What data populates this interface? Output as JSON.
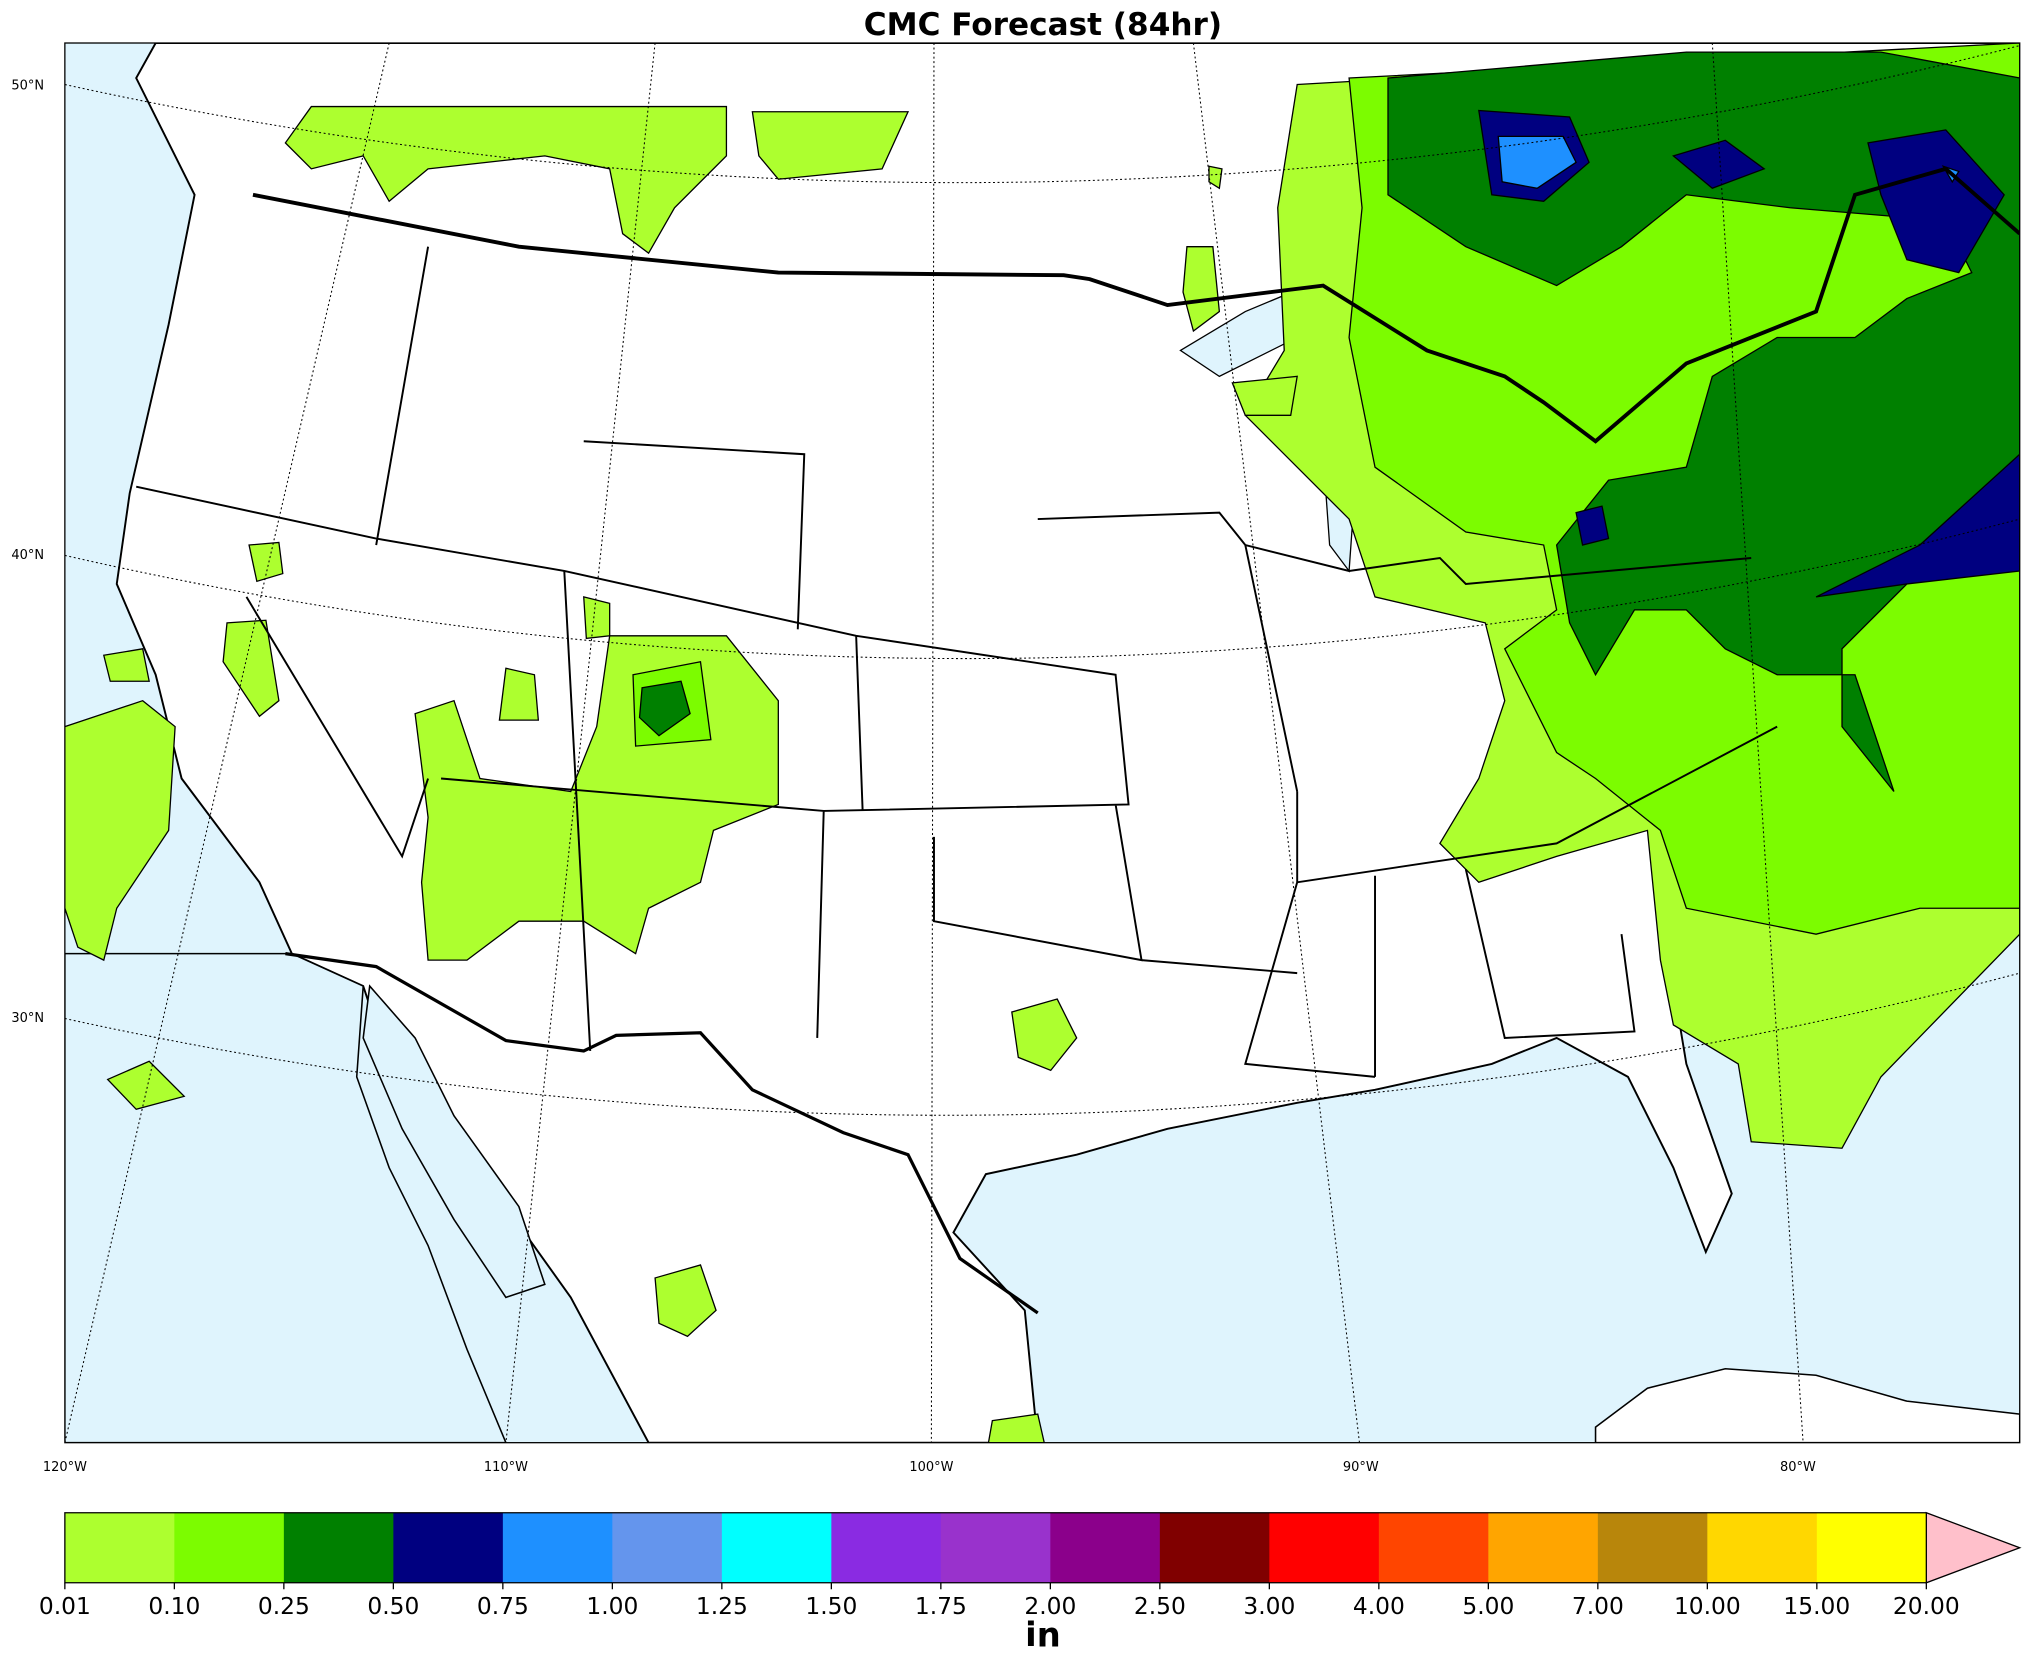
{
  "title": "CMC Forecast (84hr)",
  "graticule": {
    "latitude_labels": [
      "50°N",
      "40°N",
      "30°N"
    ],
    "longitude_labels": [
      "120°W",
      "110°W",
      "100°W",
      "90°W",
      "80°W"
    ]
  },
  "colorbar": {
    "ticks": [
      0.01,
      {
        "value": 0.1,
        "label": "0.10"
      },
      0.25,
      {
        "value": 0.5,
        "label": "0.50"
      },
      0.75,
      {
        "value": 1,
        "label": "1.00"
      },
      1.25,
      {
        "value": 1.5,
        "label": "1.50"
      },
      1.75,
      {
        "value": 2,
        "label": "2.00"
      },
      {
        "value": 2.5,
        "label": "2.50"
      },
      {
        "value": 3,
        "label": "3.00"
      },
      {
        "value": 4,
        "label": "4.00"
      },
      {
        "value": 5,
        "label": "5.00"
      },
      {
        "value": 7,
        "label": "7.00"
      },
      {
        "value": 10,
        "label": "10.00"
      },
      {
        "value": 15,
        "label": "15.00"
      },
      {
        "value": 20,
        "label": "20.00"
      }
    ],
    "colors": [
      "#adff2f",
      "#7cfc00",
      "#008000",
      "#000080",
      "#1e90ff",
      "#6495ed",
      "#00ffff",
      "#8a2be2",
      "#9932cc",
      "#8b008b",
      "#800000",
      "#ff0000",
      "#ff4500",
      "#ffa500",
      "#b8860b",
      "#ffd700",
      "#ffff00"
    ],
    "extend_color": "#ffc0cb",
    "unit": "in"
  }
}
